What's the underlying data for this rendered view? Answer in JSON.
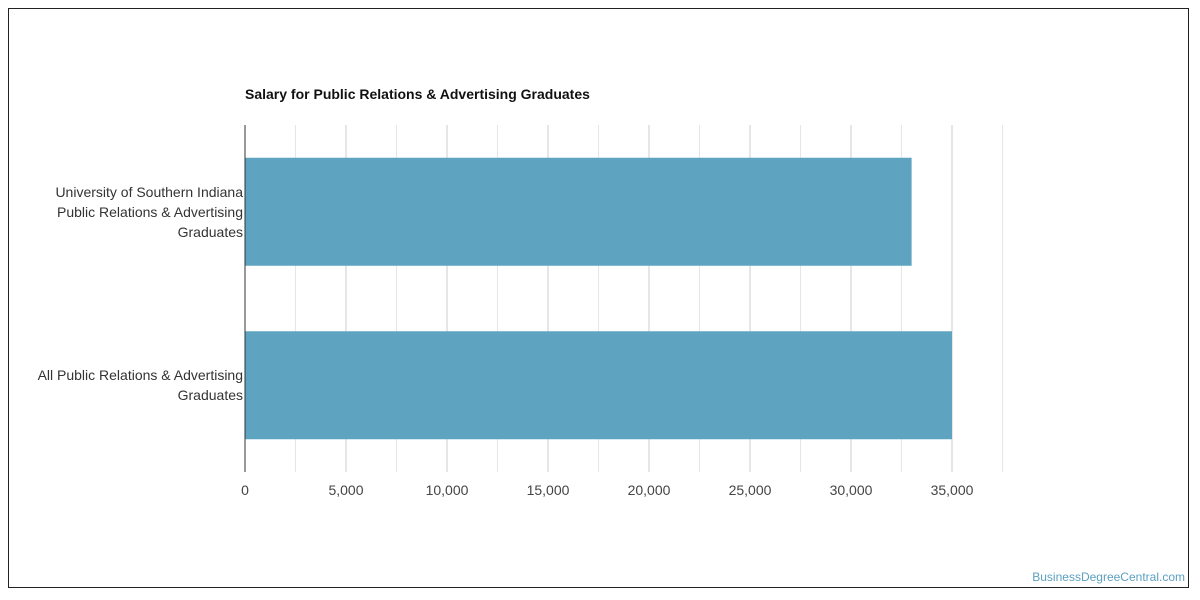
{
  "chart_data": {
    "type": "bar",
    "orientation": "horizontal",
    "title": "Salary for Public Relations & Advertising Graduates",
    "categories": [
      "University of Southern Indiana\nPublic Relations & Advertising\nGraduates",
      "All Public Relations & Advertising\nGraduates"
    ],
    "values": [
      33000,
      35000
    ],
    "xlim": [
      0,
      37500
    ],
    "xticks": [
      0,
      5000,
      10000,
      15000,
      20000,
      25000,
      30000,
      35000
    ],
    "xtick_labels": [
      "0",
      "5,000",
      "10,000",
      "15,000",
      "20,000",
      "25,000",
      "30,000",
      "35,000"
    ],
    "grid": true,
    "legend": "none",
    "bar_color": "#5ea3bf"
  },
  "watermark": "BusinessDegreeCentral.com"
}
